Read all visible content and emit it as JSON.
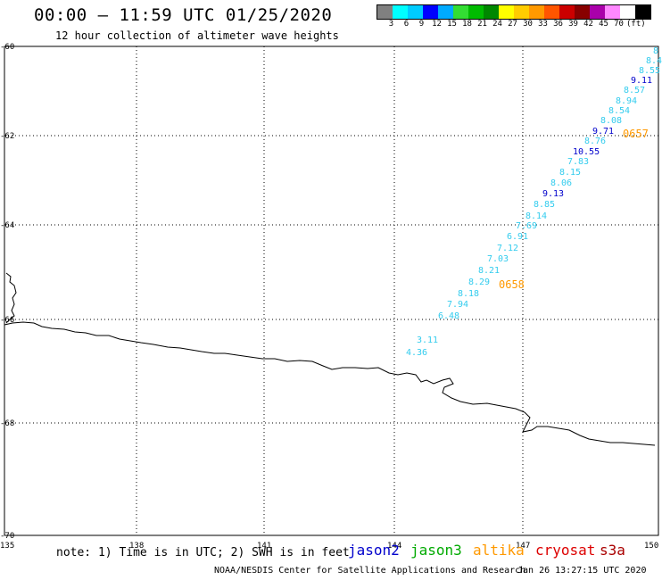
{
  "header": {
    "title": "00:00 – 11:59 UTC 01/25/2020",
    "subtitle": "12 hour collection of altimeter wave heights"
  },
  "legend": {
    "colors": [
      "#808080",
      "#00ffff",
      "#00ccff",
      "#0000ff",
      "#00aaff",
      "#33dd33",
      "#00bb00",
      "#008800",
      "#ffff00",
      "#ffcc00",
      "#ff9900",
      "#ff5500",
      "#cc0000",
      "#880000",
      "#aa00aa",
      "#ff88ff",
      "#ffffff",
      "#000000"
    ],
    "labels": [
      "3",
      "6",
      "9",
      "12",
      "15",
      "18",
      "21",
      "24",
      "27",
      "30",
      "33",
      "36",
      "39",
      "42",
      "45",
      "70",
      "(ft)"
    ]
  },
  "axes": {
    "lat_labels": [
      "-60",
      "-62",
      "-64",
      "-66",
      "-68",
      "-70"
    ],
    "lon_labels": [
      "135",
      "138",
      "141",
      "144",
      "147",
      "150"
    ]
  },
  "tracks": {
    "colors": {
      "cyan": "#33ccee",
      "blue": "#0000cc",
      "orange": "#ff9900"
    },
    "labels": [
      {
        "t": "8",
        "c": "cyan"
      },
      {
        "t": "8.4",
        "c": "cyan"
      },
      {
        "t": "8.55",
        "c": "cyan"
      },
      {
        "t": "9.11",
        "c": "blue"
      },
      {
        "t": "8.57",
        "c": "cyan"
      },
      {
        "t": "8.94",
        "c": "cyan"
      },
      {
        "t": "8.54",
        "c": "cyan"
      },
      {
        "t": "8.08",
        "c": "cyan"
      },
      {
        "t": "9.71",
        "c": "blue"
      },
      {
        "t": "0657",
        "c": "orange"
      },
      {
        "t": "8.76",
        "c": "cyan"
      },
      {
        "t": "10.55",
        "c": "blue"
      },
      {
        "t": "7.83",
        "c": "cyan"
      },
      {
        "t": "8.15",
        "c": "cyan"
      },
      {
        "t": "8.06",
        "c": "cyan"
      },
      {
        "t": "9.13",
        "c": "blue"
      },
      {
        "t": "8.85",
        "c": "cyan"
      },
      {
        "t": "8.14",
        "c": "cyan"
      },
      {
        "t": "7.69",
        "c": "cyan"
      },
      {
        "t": "6.91",
        "c": "cyan"
      },
      {
        "t": "7.12",
        "c": "cyan"
      },
      {
        "t": "7.03",
        "c": "cyan"
      },
      {
        "t": "8.21",
        "c": "cyan"
      },
      {
        "t": "8.29",
        "c": "cyan"
      },
      {
        "t": "0658",
        "c": "orange"
      },
      {
        "t": "8.18",
        "c": "cyan"
      },
      {
        "t": "7.94",
        "c": "cyan"
      },
      {
        "t": "6.48",
        "c": "cyan"
      },
      {
        "t": "3.11",
        "c": "cyan"
      },
      {
        "t": "4.36",
        "c": "cyan"
      }
    ]
  },
  "footer": {
    "note": "note: 1) Time is in UTC; 2) SWH is in feet",
    "satellites": [
      {
        "name": "jason2",
        "color": "#0000cc"
      },
      {
        "name": "jason3",
        "color": "#00aa00"
      },
      {
        "name": "altika",
        "color": "#ff9900"
      },
      {
        "name": "cryosat",
        "color": "#dd0000"
      },
      {
        "name": "s3a",
        "color": "#aa0000"
      }
    ],
    "credit": "NOAA/NESDIS Center for Satellite Applications and Research",
    "timestamp": "Jan 26 13:27:15 UTC 2020"
  }
}
